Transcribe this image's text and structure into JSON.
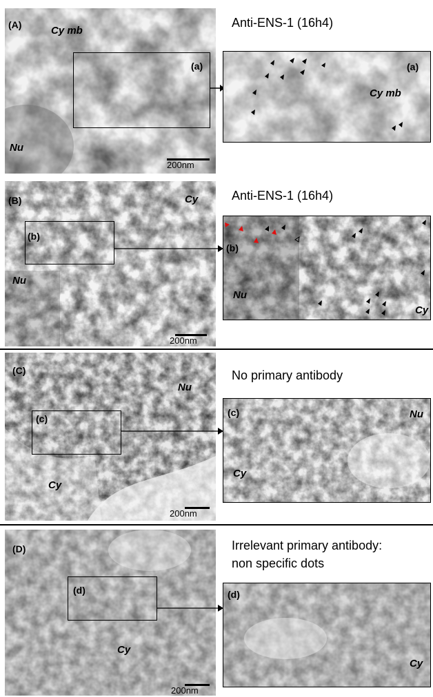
{
  "panels": [
    {
      "id": "A",
      "letter": "(A)",
      "zoom_letter": "(a)",
      "caption": "Anti-ENS-1 (16h4)",
      "micro_labels": [
        "Cy mb",
        "Nu"
      ],
      "zoom_labels": [
        "Cy mb"
      ],
      "scalebar": "200nm"
    },
    {
      "id": "B",
      "letter": "(B)",
      "zoom_letter": "(b)",
      "caption": "Anti-ENS-1 (16h4)",
      "micro_labels": [
        "Cy",
        "Nu"
      ],
      "zoom_labels": [
        "Nu",
        "Cy"
      ],
      "scalebar": "200nm"
    },
    {
      "id": "C",
      "letter": "(C)",
      "zoom_letter": "(c)",
      "caption": "No primary antibody",
      "micro_labels": [
        "Nu",
        "Cy"
      ],
      "zoom_labels": [
        "Nu",
        "Cy"
      ],
      "scalebar": "200nm"
    },
    {
      "id": "D",
      "letter": "(D)",
      "zoom_letter": "(d)",
      "caption_line1": "Irrelevant primary antibody:",
      "caption_line2": "non specific dots",
      "micro_labels": [
        "Cy"
      ],
      "zoom_labels": [
        "Cy"
      ],
      "scalebar": "200nm"
    }
  ],
  "colors": {
    "arrowhead_black": "#000000",
    "arrowhead_red": "#e01010"
  }
}
